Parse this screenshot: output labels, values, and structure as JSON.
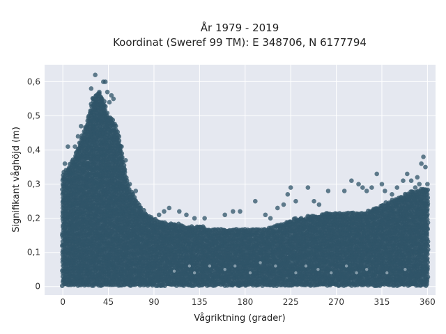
{
  "chart_data": {
    "type": "scatter",
    "title_line1": "År 1979 - 2019",
    "title_line2": "Koordinat (Sweref 99 TM): E 348706, N 6177794",
    "xlabel": "Vågriktning (grader)",
    "ylabel": "Signifikant våghöjd (m)",
    "xlim": [
      -18,
      368
    ],
    "ylim": [
      -0.025,
      0.65
    ],
    "xticks": [
      0,
      45,
      90,
      135,
      180,
      225,
      270,
      315,
      360
    ],
    "xtick_labels": [
      "0",
      "45",
      "90",
      "135",
      "180",
      "225",
      "270",
      "315",
      "360"
    ],
    "yticks": [
      0,
      0.1,
      0.2,
      0.3,
      0.4,
      0.5,
      0.6
    ],
    "ytick_labels": [
      "0",
      "0,1",
      "0,2",
      "0,3",
      "0,4",
      "0,5",
      "0,6"
    ],
    "grid": true,
    "legend": "none",
    "colors": {
      "marker": "#2f5468",
      "plot_bg": "#e5e8f0",
      "grid": "#ffffff"
    },
    "envelope": [
      [
        0,
        0.33
      ],
      [
        10,
        0.37
      ],
      [
        20,
        0.45
      ],
      [
        25,
        0.5
      ],
      [
        30,
        0.55
      ],
      [
        35,
        0.57
      ],
      [
        40,
        0.55
      ],
      [
        45,
        0.5
      ],
      [
        50,
        0.49
      ],
      [
        55,
        0.45
      ],
      [
        60,
        0.37
      ],
      [
        65,
        0.29
      ],
      [
        70,
        0.27
      ],
      [
        75,
        0.24
      ],
      [
        80,
        0.22
      ],
      [
        85,
        0.21
      ],
      [
        90,
        0.2
      ],
      [
        100,
        0.19
      ],
      [
        120,
        0.18
      ],
      [
        150,
        0.17
      ],
      [
        180,
        0.17
      ],
      [
        200,
        0.17
      ],
      [
        230,
        0.2
      ],
      [
        270,
        0.22
      ],
      [
        300,
        0.22
      ],
      [
        330,
        0.26
      ],
      [
        345,
        0.28
      ],
      [
        360,
        0.29
      ]
    ],
    "outliers": [
      [
        32,
        0.62
      ],
      [
        40,
        0.6
      ],
      [
        42,
        0.6
      ],
      [
        28,
        0.58
      ],
      [
        36,
        0.57
      ],
      [
        44,
        0.57
      ],
      [
        48,
        0.56
      ],
      [
        50,
        0.55
      ],
      [
        33,
        0.56
      ],
      [
        30,
        0.55
      ],
      [
        46,
        0.54
      ],
      [
        38,
        0.53
      ],
      [
        18,
        0.47
      ],
      [
        15,
        0.44
      ],
      [
        5,
        0.41
      ],
      [
        12,
        0.41
      ],
      [
        58,
        0.41
      ],
      [
        62,
        0.37
      ],
      [
        66,
        0.3
      ],
      [
        72,
        0.28
      ],
      [
        76,
        0.23
      ],
      [
        100,
        0.22
      ],
      [
        105,
        0.23
      ],
      [
        115,
        0.22
      ],
      [
        122,
        0.21
      ],
      [
        130,
        0.2
      ],
      [
        160,
        0.21
      ],
      [
        168,
        0.22
      ],
      [
        175,
        0.22
      ],
      [
        190,
        0.25
      ],
      [
        205,
        0.2
      ],
      [
        212,
        0.23
      ],
      [
        218,
        0.24
      ],
      [
        222,
        0.27
      ],
      [
        225,
        0.29
      ],
      [
        230,
        0.25
      ],
      [
        242,
        0.29
      ],
      [
        253,
        0.24
      ],
      [
        262,
        0.28
      ],
      [
        278,
        0.28
      ],
      [
        285,
        0.31
      ],
      [
        292,
        0.3
      ],
      [
        296,
        0.29
      ],
      [
        300,
        0.28
      ],
      [
        305,
        0.29
      ],
      [
        310,
        0.33
      ],
      [
        315,
        0.3
      ],
      [
        318,
        0.28
      ],
      [
        325,
        0.27
      ],
      [
        330,
        0.29
      ],
      [
        336,
        0.31
      ],
      [
        340,
        0.33
      ],
      [
        344,
        0.31
      ],
      [
        350,
        0.32
      ],
      [
        354,
        0.36
      ],
      [
        356,
        0.38
      ],
      [
        358,
        0.35
      ],
      [
        352,
        0.3
      ],
      [
        348,
        0.29
      ],
      [
        360,
        0.3
      ],
      [
        2,
        0.36
      ],
      [
        8,
        0.33
      ],
      [
        95,
        0.21
      ],
      [
        140,
        0.2
      ],
      [
        200,
        0.21
      ],
      [
        248,
        0.25
      ]
    ],
    "gaps": [
      [
        110,
        0.045
      ],
      [
        125,
        0.06
      ],
      [
        130,
        0.04
      ],
      [
        145,
        0.06
      ],
      [
        160,
        0.05
      ],
      [
        170,
        0.06
      ],
      [
        185,
        0.04
      ],
      [
        195,
        0.07
      ],
      [
        210,
        0.06
      ],
      [
        230,
        0.04
      ],
      [
        240,
        0.06
      ],
      [
        252,
        0.05
      ],
      [
        265,
        0.04
      ],
      [
        280,
        0.06
      ],
      [
        290,
        0.04
      ],
      [
        300,
        0.05
      ],
      [
        320,
        0.04
      ],
      [
        338,
        0.05
      ]
    ]
  }
}
